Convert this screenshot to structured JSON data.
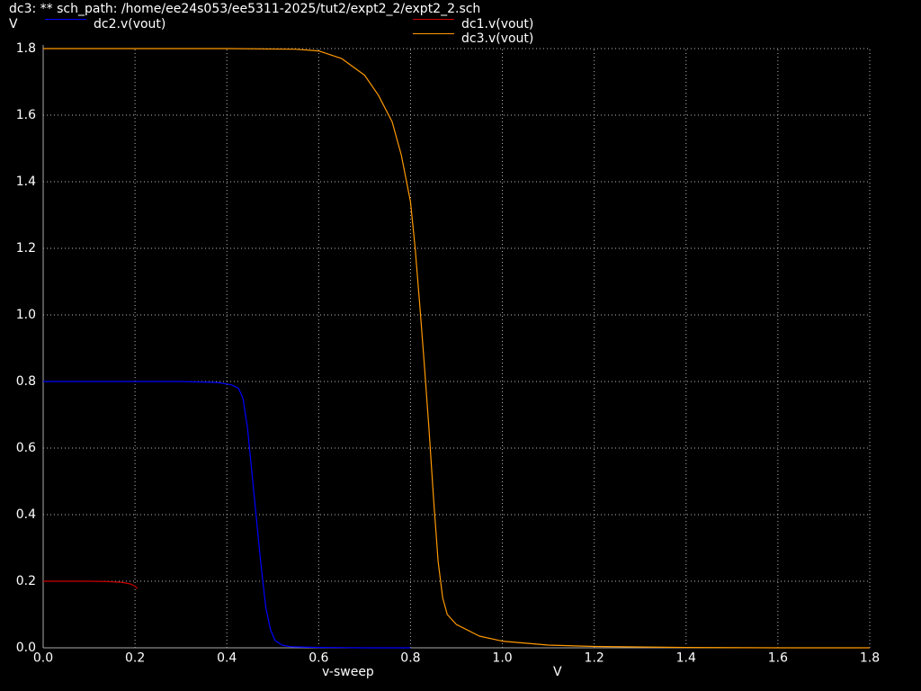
{
  "window": {
    "title": "dc3: ** sch_path: /home/ee24s053/ee5311-2025/tut2/expt2_2/expt2_2.sch"
  },
  "chart_data": {
    "type": "line",
    "ylabel": "V",
    "xlabel": "v-sweep",
    "xunit": "V",
    "xlim": [
      0,
      1.8
    ],
    "ylim": [
      0,
      1.8
    ],
    "grid": true,
    "legend_placement": "top",
    "xticks": [
      "0.0",
      "0.2",
      "0.4",
      "0.6",
      "0.8",
      "1.0",
      "1.2",
      "1.4",
      "1.6",
      "1.8"
    ],
    "yticks": [
      "0.0",
      "0.2",
      "0.4",
      "0.6",
      "0.8",
      "1.0",
      "1.2",
      "1.4",
      "1.6",
      "1.8"
    ],
    "series": [
      {
        "name": "dc1.v(vout)",
        "color": "#cc0000",
        "x": [
          0,
          0.05,
          0.1,
          0.14,
          0.17,
          0.19,
          0.2,
          0.205
        ],
        "y": [
          0.2,
          0.2,
          0.2,
          0.199,
          0.197,
          0.192,
          0.185,
          0.178
        ]
      },
      {
        "name": "dc2.v(vout)",
        "color": "#0000ff",
        "x": [
          0,
          0.1,
          0.2,
          0.3,
          0.38,
          0.41,
          0.425,
          0.435,
          0.445,
          0.455,
          0.465,
          0.475,
          0.485,
          0.495,
          0.505,
          0.52,
          0.54,
          0.6,
          0.7,
          0.8
        ],
        "y": [
          0.8,
          0.8,
          0.8,
          0.8,
          0.797,
          0.79,
          0.78,
          0.75,
          0.66,
          0.52,
          0.38,
          0.24,
          0.12,
          0.055,
          0.022,
          0.008,
          0.003,
          0.001,
          0.0,
          0.0
        ]
      },
      {
        "name": "dc3.v(vout)",
        "color": "#ff9900",
        "x": [
          0,
          0.2,
          0.4,
          0.55,
          0.6,
          0.65,
          0.7,
          0.73,
          0.76,
          0.78,
          0.8,
          0.81,
          0.82,
          0.83,
          0.84,
          0.85,
          0.86,
          0.87,
          0.88,
          0.9,
          0.95,
          1.0,
          1.1,
          1.2,
          1.4,
          1.6,
          1.8
        ],
        "y": [
          1.8,
          1.8,
          1.8,
          1.798,
          1.793,
          1.77,
          1.72,
          1.66,
          1.58,
          1.48,
          1.34,
          1.2,
          1.03,
          0.85,
          0.66,
          0.45,
          0.26,
          0.15,
          0.1,
          0.07,
          0.035,
          0.02,
          0.008,
          0.004,
          0.001,
          0.0,
          0.0
        ]
      }
    ]
  }
}
